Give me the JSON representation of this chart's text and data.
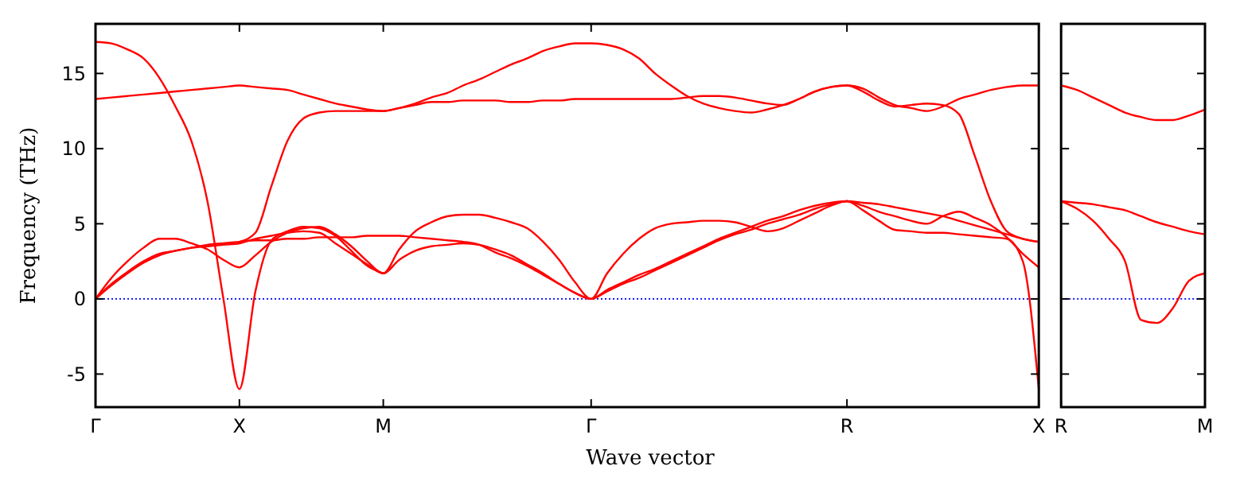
{
  "chart_data": [
    {
      "type": "line",
      "xlabel": "Wave vector",
      "ylabel": "Frequency (THz)",
      "ylim": [
        -7.2,
        18.3
      ],
      "categories": [
        "Γ",
        null,
        null,
        null,
        null,
        null,
        null,
        null,
        null,
        "X",
        null,
        null,
        null,
        null,
        null,
        null,
        null,
        null,
        "M",
        null,
        null,
        null,
        null,
        null,
        null,
        null,
        null,
        null,
        null,
        null,
        null,
        "Γ",
        null,
        null,
        null,
        null,
        null,
        null,
        null,
        null,
        null,
        null,
        null,
        null,
        null,
        null,
        null,
        "R",
        null,
        null,
        null,
        null,
        null,
        null,
        null,
        null,
        null,
        null,
        null,
        "X"
      ],
      "yticks": [
        -5,
        0,
        5,
        10,
        15
      ],
      "ref_lines": [
        {
          "axis": "y",
          "value": 0,
          "color": "#0000ff",
          "line_style": "dotted"
        }
      ],
      "series": [
        {
          "color": "#ff0000",
          "values": [
            17.1,
            17.0,
            16.6,
            16.0,
            14.7,
            12.8,
            10.5,
            6.5,
            0,
            -6,
            0.5,
            3.9,
            4.5,
            4.8,
            4.7,
            4.2,
            3.2,
            2.2,
            1.7,
            null,
            null,
            null,
            null,
            null,
            null,
            null,
            null,
            null,
            null,
            null,
            null,
            null,
            null,
            null,
            null,
            null,
            null,
            null,
            null,
            null,
            null,
            null,
            null,
            null,
            null,
            null,
            null,
            null,
            null,
            null,
            null,
            null,
            null,
            null,
            null,
            null,
            null,
            null,
            null,
            null
          ]
        },
        {
          "color": "#ff0000",
          "values": [
            13.3,
            13.4,
            13.5,
            13.6,
            13.7,
            13.8,
            13.9,
            14.0,
            14.1,
            14.2,
            14.1,
            14.0,
            13.9,
            13.6,
            13.3,
            13.0,
            12.8,
            12.6,
            12.5,
            12.7,
            12.9,
            13.1,
            13.1,
            13.2,
            13.2,
            13.2,
            13.1,
            13.1,
            13.2,
            13.2,
            13.3,
            13.3,
            13.3,
            13.3,
            13.3,
            13.3,
            13.3,
            13.4,
            13.5,
            13.5,
            13.4,
            13.2,
            13.0,
            12.9,
            13.3,
            13.8,
            14.1,
            14.2,
            14.0,
            13.4,
            12.9,
            12.7,
            12.5,
            12.8,
            13.3,
            13.6,
            13.9,
            14.1,
            14.2,
            14.2
          ]
        },
        {
          "color": "#ff0000",
          "values": [
            null,
            null,
            null,
            null,
            null,
            null,
            null,
            null,
            null,
            3.8,
            4.4,
            7.5,
            10.5,
            12.0,
            12.4,
            12.5,
            12.5,
            12.5,
            12.5,
            12.7,
            13.0,
            13.4,
            13.7,
            14.2,
            14.6,
            15.1,
            15.6,
            16.0,
            16.5,
            16.8,
            17.0,
            17.0,
            16.9,
            16.6,
            16.0,
            15.0,
            14.2,
            13.5,
            13.0,
            12.7,
            12.5,
            12.4,
            12.6,
            12.9,
            13.3,
            13.8,
            14.1,
            14.2,
            13.8,
            13.2,
            12.8,
            12.9,
            13.0,
            12.9,
            12.3,
            9.5,
            6.5,
            4.5,
            4.0,
            3.8
          ]
        },
        {
          "color": "#ff0000",
          "values": [
            0,
            1.4,
            2.5,
            3.4,
            4.0,
            4.0,
            3.7,
            3.3,
            2.6,
            2.1,
            2.9,
            3.8,
            4.4,
            4.7,
            4.8,
            4.3,
            3.5,
            2.5,
            1.7,
            3.3,
            4.5,
            5.1,
            5.5,
            5.6,
            5.6,
            5.4,
            5.1,
            4.7,
            3.8,
            2.6,
            1.1,
            0,
            1.7,
            3.0,
            4.0,
            4.7,
            5.0,
            5.1,
            5.2,
            5.2,
            5.1,
            4.8,
            4.5,
            4.7,
            5.2,
            5.7,
            6.2,
            6.5,
            6.2,
            5.8,
            5.5,
            5.2,
            5.0,
            5.5,
            5.8,
            5.4,
            4.9,
            4.1,
            3.0,
            2.1
          ]
        },
        {
          "color": "#ff0000",
          "values": [
            0,
            1.0,
            1.8,
            2.5,
            3.0,
            3.2,
            3.4,
            3.6,
            3.7,
            3.8,
            3.9,
            3.9,
            4.0,
            4.0,
            4.1,
            4.1,
            4.1,
            4.2,
            4.2,
            4.2,
            4.1,
            4.0,
            3.9,
            3.8,
            3.6,
            3.1,
            2.7,
            2.2,
            1.6,
            1.0,
            0.4,
            0,
            0.5,
            1.0,
            1.4,
            1.9,
            2.4,
            2.9,
            3.4,
            3.9,
            4.3,
            4.6,
            5.0,
            5.3,
            5.6,
            6.0,
            6.3,
            6.5,
            6.4,
            6.3,
            6.1,
            5.9,
            5.7,
            5.5,
            5.2,
            4.9,
            4.6,
            4.3,
            4.0,
            3.8
          ]
        },
        {
          "color": "#ff0000",
          "values": [
            0,
            0.9,
            1.7,
            2.4,
            2.9,
            3.2,
            3.4,
            3.5,
            3.6,
            3.7,
            4.0,
            4.2,
            4.4,
            4.5,
            4.4,
            3.7,
            3.0,
            2.3,
            1.7,
            2.6,
            3.2,
            3.5,
            3.6,
            3.7,
            3.6,
            3.3,
            2.9,
            2.3,
            1.7,
            1.0,
            0.4,
            0,
            0.6,
            1.1,
            1.6,
            2.0,
            2.5,
            3.0,
            3.5,
            4.0,
            4.4,
            4.8,
            5.2,
            5.5,
            5.9,
            6.2,
            6.4,
            6.5,
            5.9,
            5.2,
            4.6,
            4.5,
            4.4,
            4.4,
            4.3,
            4.2,
            4.1,
            4.0,
            2.5,
            -6
          ]
        }
      ]
    },
    {
      "type": "line",
      "ylim": [
        -7.2,
        18.3
      ],
      "tick_labels": "x",
      "categories": [
        "R",
        null,
        null,
        null,
        null,
        null,
        null,
        null,
        null,
        "M"
      ],
      "yticks": [
        -5,
        0,
        5,
        10,
        15
      ],
      "ref_lines": [
        {
          "axis": "y",
          "value": 0,
          "color": "#0000ff",
          "line_style": "dotted"
        }
      ],
      "series": [
        {
          "color": "#ff0000",
          "values": [
            14.2,
            13.9,
            13.4,
            12.9,
            12.4,
            12.1,
            11.9,
            11.9,
            12.2,
            12.6
          ]
        },
        {
          "color": "#ff0000",
          "values": [
            6.5,
            6.4,
            6.3,
            6.1,
            5.9,
            5.5,
            5.1,
            4.8,
            4.5,
            4.3
          ]
        },
        {
          "color": "#ff0000",
          "values": [
            6.5,
            6.0,
            5.2,
            4.0,
            2.5,
            -1.4,
            -1.6,
            -0.6,
            1.2,
            1.7
          ]
        }
      ]
    }
  ]
}
